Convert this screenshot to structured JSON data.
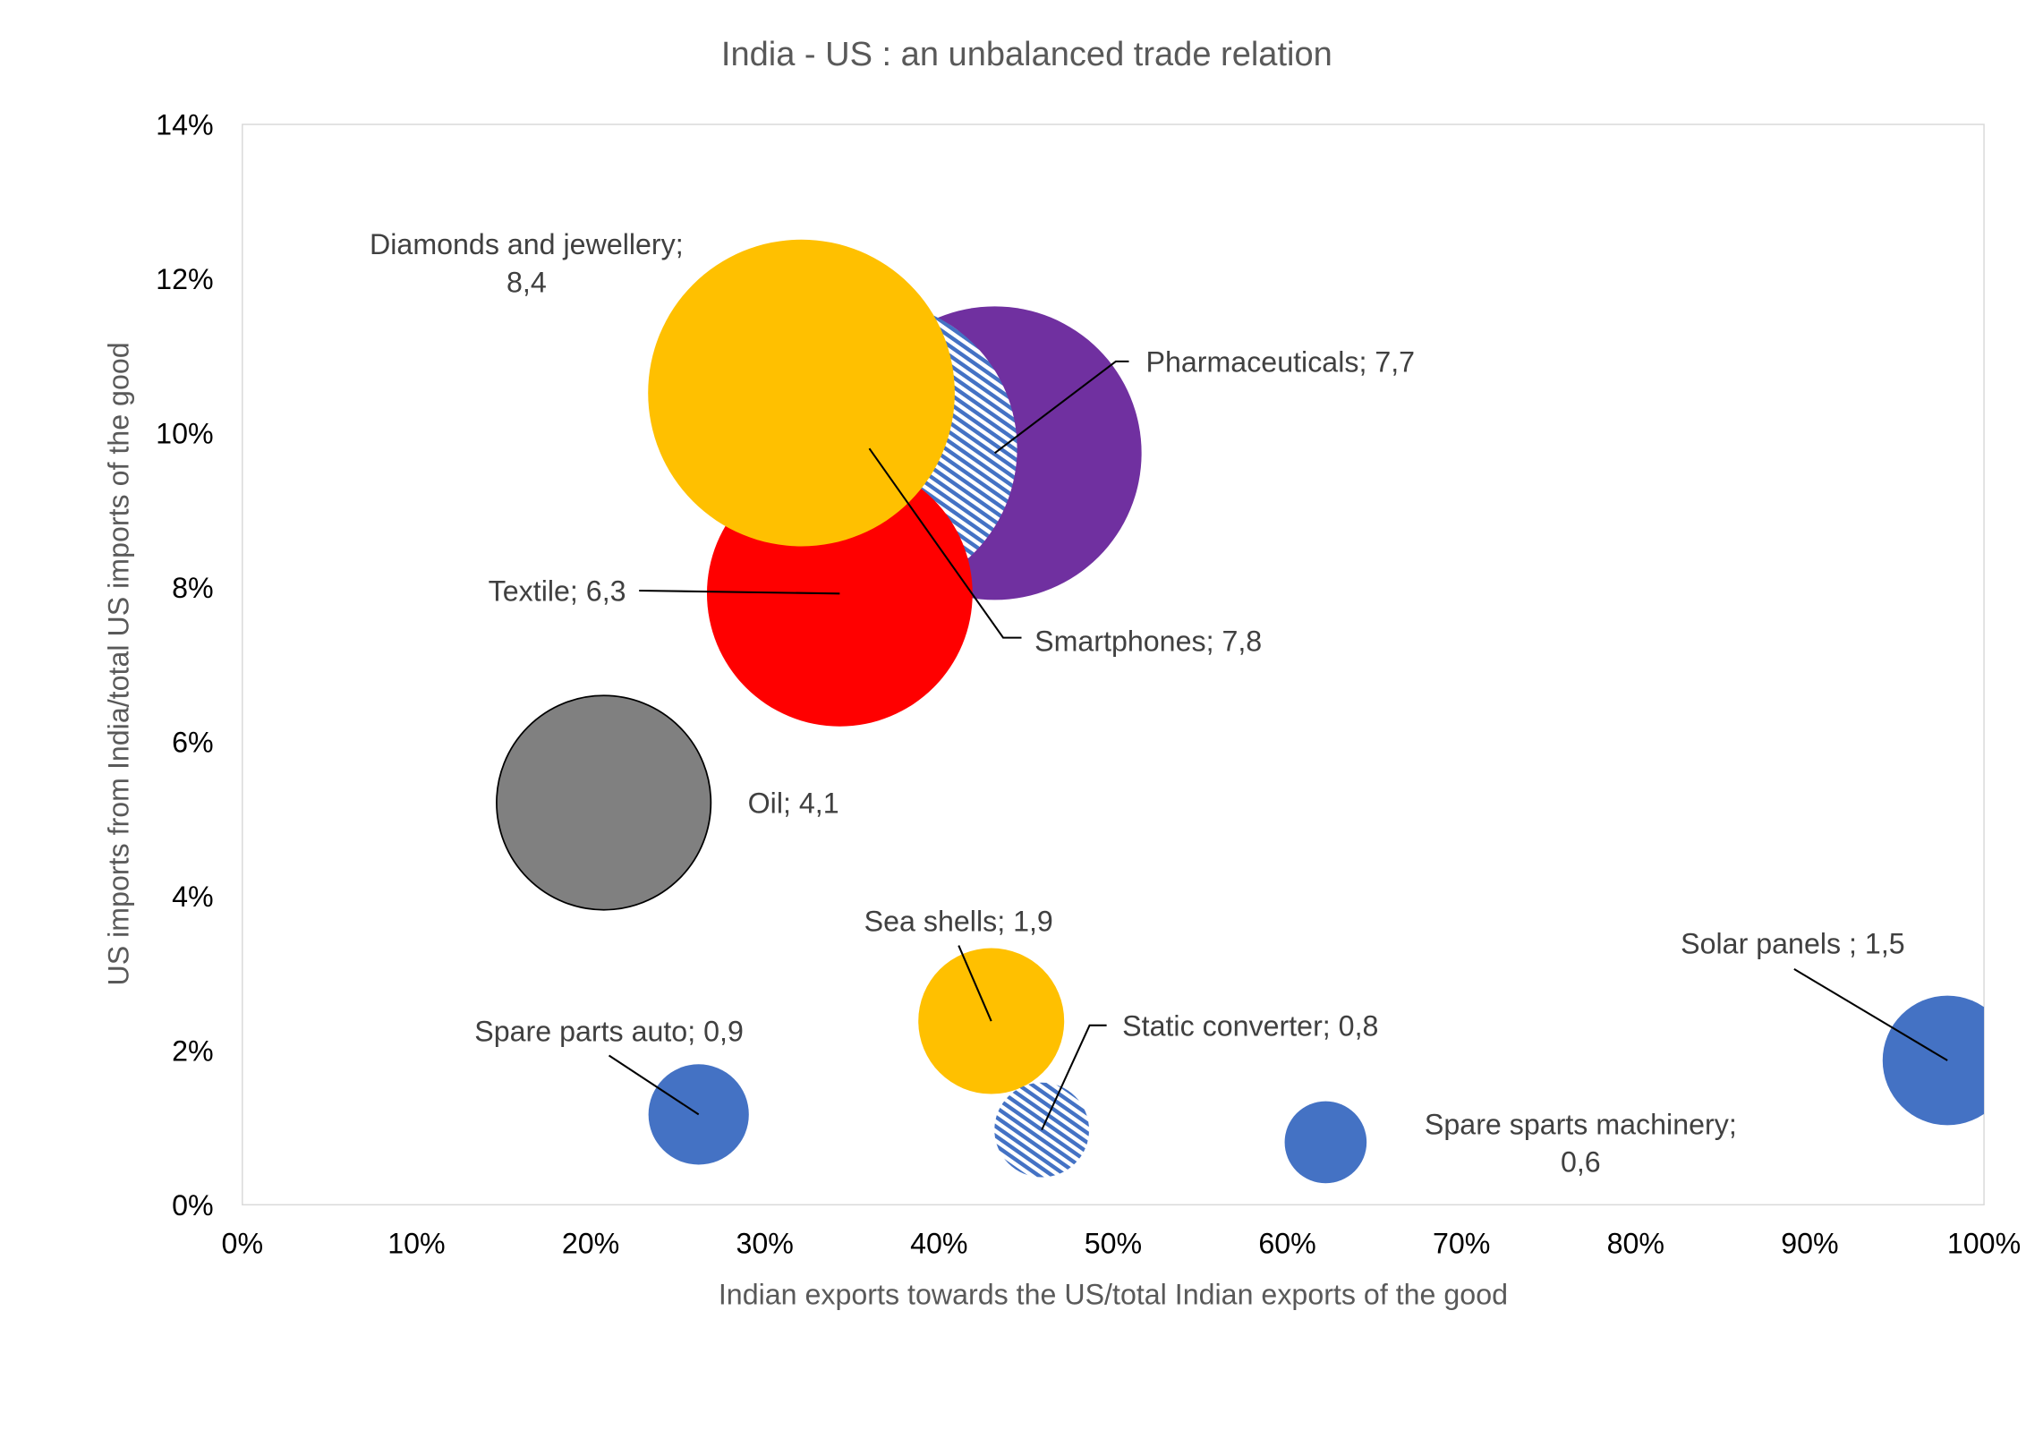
{
  "chart_data": {
    "type": "bubble",
    "title": "India - US : an unbalanced trade relation",
    "xlabel": "Indian exports towards the US/total Indian exports of the good",
    "ylabel": "US imports from India/total US imports of the good",
    "xlim": [
      0,
      100
    ],
    "ylim": [
      0,
      14
    ],
    "x_ticks": [
      "0%",
      "10%",
      "20%",
      "30%",
      "40%",
      "50%",
      "60%",
      "70%",
      "80%",
      "90%",
      "100%"
    ],
    "y_ticks": [
      "0%",
      "2%",
      "4%",
      "6%",
      "8%",
      "10%",
      "12%",
      "14%"
    ],
    "grid": false,
    "series": [
      {
        "name": "Pharmaceuticals",
        "x": 43.2,
        "y": 9.74,
        "size": 7.7,
        "label": "Pharmaceuticals; 7,7",
        "color": "#7030A0",
        "pattern": "solid"
      },
      {
        "name": "Smartphones",
        "x": 36.0,
        "y": 9.8,
        "size": 7.8,
        "label": "Smartphones; 7,8",
        "color": "#4472C4",
        "pattern": "hatched"
      },
      {
        "name": "Textile",
        "x": 34.3,
        "y": 7.92,
        "size": 6.3,
        "label": "Textile; 6,3",
        "color": "#FF0000",
        "pattern": "solid"
      },
      {
        "name": "Diamonds and jewellery",
        "x": 32.1,
        "y": 10.52,
        "size": 8.4,
        "label": "Diamonds and jewellery;",
        "label2": "8,4",
        "color": "#FFC000",
        "pattern": "solid"
      },
      {
        "name": "Oil",
        "x": 20.75,
        "y": 5.21,
        "size": 4.1,
        "label": "Oil; 4,1",
        "color": "#808080",
        "pattern": "solid"
      },
      {
        "name": "Sea shells",
        "x": 43.0,
        "y": 2.38,
        "size": 1.9,
        "label": "Sea shells;  1,9",
        "color": "#FFC000",
        "pattern": "solid"
      },
      {
        "name": "Static converter",
        "x": 45.9,
        "y": 0.97,
        "size": 0.8,
        "label": "Static converter; 0,8",
        "color": "#4472C4",
        "pattern": "hatched"
      },
      {
        "name": "Spare parts auto",
        "x": 26.2,
        "y": 1.17,
        "size": 0.9,
        "label": "Spare parts auto; 0,9",
        "color": "#4472C4",
        "pattern": "solid"
      },
      {
        "name": "Spare sparts machinery",
        "x": 62.2,
        "y": 0.81,
        "size": 0.6,
        "label": "Spare sparts machinery;",
        "label2": "0,6",
        "color": "#4472C4",
        "pattern": "solid"
      },
      {
        "name": "Solar panels",
        "x": 97.9,
        "y": 1.87,
        "size": 1.5,
        "label": "Solar panels ; 1,5",
        "color": "#4472C4",
        "pattern": "solid"
      }
    ]
  }
}
